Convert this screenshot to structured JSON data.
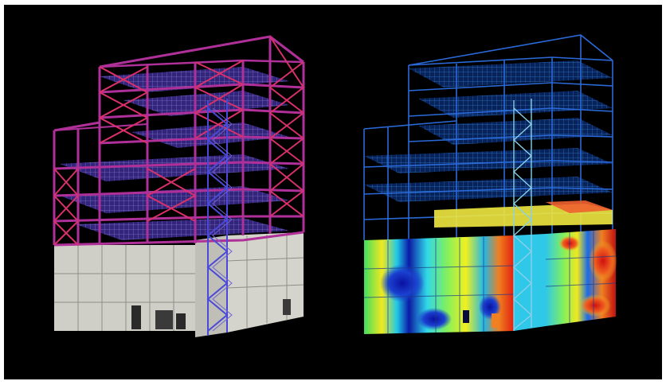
{
  "image": {
    "background": "#000000",
    "border": "#ffffff"
  },
  "models": [
    {
      "kind": "steel-frame-with-cladding",
      "frame_color": "#a0309a",
      "brace_color": "#d8305a",
      "floor_grid_color": "#7a70c8",
      "stair_color": "#4040c8",
      "cladding_color": "#cfcfc8",
      "cladding_line": "#9a9a95"
    },
    {
      "kind": "stress-contour-model",
      "frame_color": "#2a6ad8",
      "contour_colors": [
        "#0a1aa8",
        "#1a6ae8",
        "#30d8e8",
        "#70f070",
        "#f0f020",
        "#f08020",
        "#e02010"
      ]
    }
  ]
}
